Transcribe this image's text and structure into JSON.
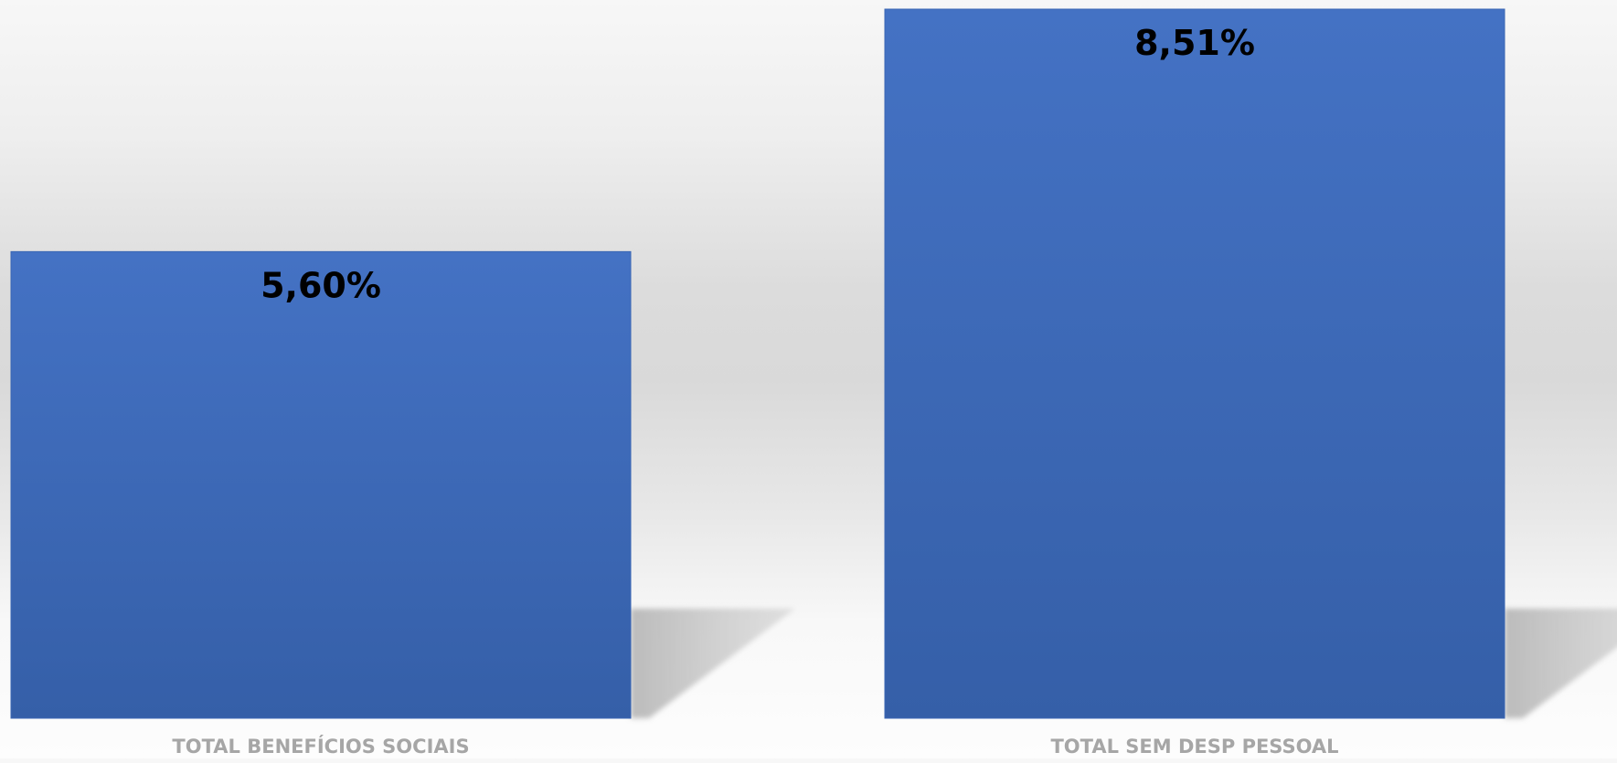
{
  "chart_data": {
    "type": "bar",
    "title": "",
    "xlabel": "",
    "ylabel": "",
    "categories": [
      "TOTAL BENEFÍCIOS SOCIAIS",
      "TOTAL SEM DESP PESSOAL"
    ],
    "values": [
      5.6,
      8.51
    ],
    "data_labels": [
      "5,60%",
      "8,51%"
    ],
    "ylim": [
      0,
      8.51
    ],
    "grid": false,
    "legend": "none",
    "colors": {
      "bar_top": "#4472c4",
      "bar_bottom": "#355fa8",
      "data_label": "#000000",
      "category_label": "#a6a6a6",
      "shadow": "#bfbfbf"
    }
  }
}
